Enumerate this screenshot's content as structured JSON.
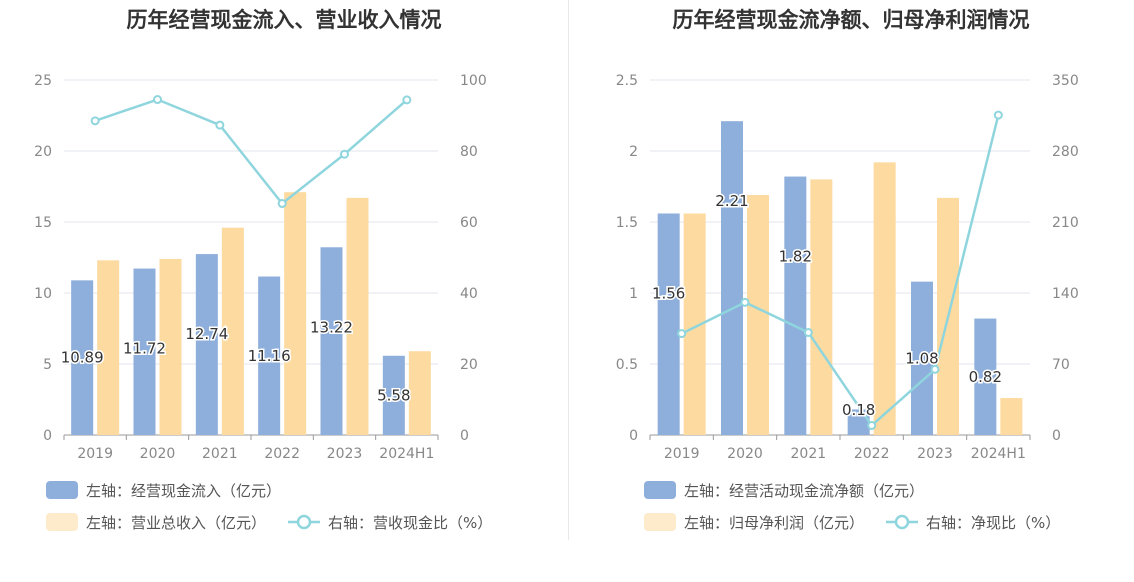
{
  "colors": {
    "bar_primary": "#8eaedb",
    "bar_secondary": "#fddaa0",
    "bar_secondary_legend": "#fdebcb",
    "line": "#8fd5dd",
    "axis_text": "#888888",
    "grid": "#e3e6ee",
    "title": "#333333"
  },
  "charts": [
    {
      "title": "历年经营现金流入、营业收入情况",
      "legend": {
        "bar1": "左轴：经营现金流入（亿元）",
        "bar2": "左轴：营业总收入（亿元）",
        "line": "右轴：营收现金比（%）"
      }
    },
    {
      "title": "历年经营现金流净额、归母净利润情况",
      "legend": {
        "bar1": "左轴：经营活动现金流净额（亿元）",
        "bar2": "左轴：归母净利润（亿元）",
        "line": "右轴：净现比（%）"
      }
    }
  ],
  "chart_data": [
    {
      "type": "bar",
      "title": "历年经营现金流入、营业收入情况",
      "categories": [
        "2019",
        "2020",
        "2021",
        "2022",
        "2023",
        "2024H1"
      ],
      "y_left": {
        "min": 0,
        "max": 25,
        "ticks": [
          0,
          5,
          10,
          15,
          20,
          25
        ]
      },
      "y_right": {
        "min": 0,
        "max": 100,
        "ticks": [
          0,
          20,
          40,
          60,
          80,
          100
        ]
      },
      "series": [
        {
          "name": "左轴：经营现金流入（亿元）",
          "type": "bar",
          "axis": "left",
          "values": [
            10.89,
            11.72,
            12.74,
            11.16,
            13.22,
            5.58
          ],
          "labels": [
            "10.89",
            "11.72",
            "12.74",
            "11.16",
            "13.22",
            "5.58"
          ]
        },
        {
          "name": "左轴：营业总收入（亿元）",
          "type": "bar",
          "axis": "left",
          "values": [
            12.3,
            12.4,
            14.6,
            17.1,
            16.7,
            5.9
          ]
        },
        {
          "name": "右轴：营收现金比（%）",
          "type": "line",
          "axis": "right",
          "values": [
            88.5,
            94.5,
            87.3,
            65.2,
            79.1,
            94.4
          ]
        }
      ],
      "legend_position": "bottom",
      "grid": true
    },
    {
      "type": "bar",
      "title": "历年经营现金流净额、归母净利润情况",
      "categories": [
        "2019",
        "2020",
        "2021",
        "2022",
        "2023",
        "2024H1"
      ],
      "y_left": {
        "min": 0,
        "max": 2.5,
        "ticks": [
          0,
          0.5,
          1,
          1.5,
          2,
          2.5
        ]
      },
      "y_right": {
        "min": 0,
        "max": 350,
        "ticks": [
          0,
          70,
          140,
          210,
          280,
          350
        ]
      },
      "series": [
        {
          "name": "左轴：经营活动现金流净额（亿元）",
          "type": "bar",
          "axis": "left",
          "values": [
            1.56,
            2.21,
            1.82,
            0.18,
            1.08,
            0.82
          ],
          "labels": [
            "1.56",
            "2.21",
            "1.82",
            "0.18",
            "1.08",
            "0.82"
          ]
        },
        {
          "name": "左轴：归母净利润（亿元）",
          "type": "bar",
          "axis": "left",
          "values": [
            1.56,
            1.69,
            1.8,
            1.92,
            1.67,
            0.26
          ]
        },
        {
          "name": "右轴：净现比（%）",
          "type": "line",
          "axis": "right",
          "values": [
            100,
            130.8,
            101.1,
            9.4,
            64.7,
            315.4
          ]
        }
      ],
      "legend_position": "bottom",
      "grid": true
    }
  ]
}
